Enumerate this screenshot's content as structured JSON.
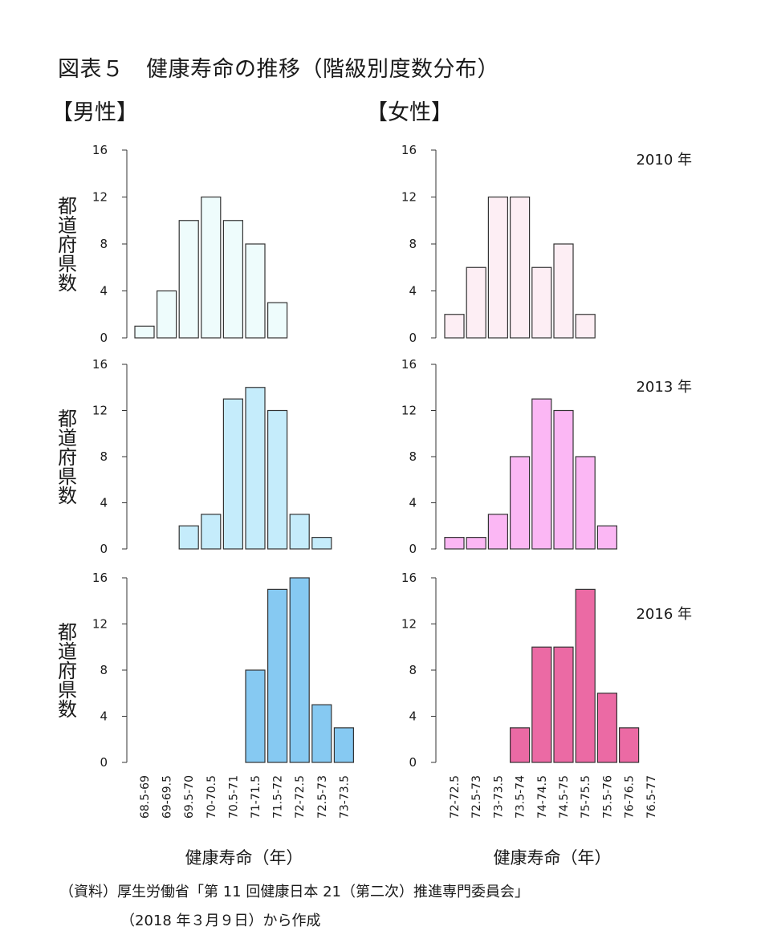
{
  "title": "図表５　健康寿命の推移（階級別度数分布）",
  "panel_headers": {
    "male": "【男性】",
    "female": "【女性】"
  },
  "y_axis_label": "都道府県数",
  "x_axis_label": "健康寿命（年）",
  "source_line1": "（資料）厚生労働省「第 11 回健康日本 21（第二次）推進専門委員会」",
  "source_line2": "（2018 年３月９日）から作成",
  "chart_data": [
    {
      "type": "bar",
      "sex": "male",
      "year_label": "",
      "categories": [
        "68.5-69",
        "69-69.5",
        "69.5-70",
        "70-70.5",
        "70.5-71",
        "71-71.5",
        "71.5-72",
        "72-72.5",
        "72.5-73",
        "73-73.5"
      ],
      "values": [
        1,
        4,
        10,
        12,
        10,
        8,
        3,
        0,
        0,
        0
      ],
      "yticks": [
        0,
        4,
        8,
        12,
        16
      ],
      "ylim": [
        0,
        16
      ],
      "color": "#eefcfc"
    },
    {
      "type": "bar",
      "sex": "female",
      "year_label": "2010 年",
      "categories": [
        "72-72.5",
        "72.5-73",
        "73-73.5",
        "73.5-74",
        "74-74.5",
        "74.5-75",
        "75-75.5",
        "75.5-76",
        "76-76.5",
        "76.5-77"
      ],
      "values": [
        2,
        6,
        12,
        12,
        6,
        8,
        2,
        0,
        0,
        0
      ],
      "yticks": [
        0,
        4,
        8,
        12,
        16
      ],
      "ylim": [
        0,
        16
      ],
      "color": "#fdeef4"
    },
    {
      "type": "bar",
      "sex": "male",
      "year_label": "",
      "categories": [
        "68.5-69",
        "69-69.5",
        "69.5-70",
        "70-70.5",
        "70.5-71",
        "71-71.5",
        "71.5-72",
        "72-72.5",
        "72.5-73",
        "73-73.5"
      ],
      "values": [
        0,
        0,
        2,
        3,
        13,
        14,
        12,
        3,
        1,
        0
      ],
      "yticks": [
        0,
        4,
        8,
        12,
        16
      ],
      "ylim": [
        0,
        16
      ],
      "color": "#c5ecfb"
    },
    {
      "type": "bar",
      "sex": "female",
      "year_label": "2013 年",
      "categories": [
        "72-72.5",
        "72.5-73",
        "73-73.5",
        "73.5-74",
        "74-74.5",
        "74.5-75",
        "75-75.5",
        "75.5-76",
        "76-76.5",
        "76.5-77"
      ],
      "values": [
        1,
        1,
        3,
        8,
        13,
        12,
        8,
        2,
        0,
        0
      ],
      "yticks": [
        0,
        4,
        8,
        12,
        16
      ],
      "ylim": [
        0,
        16
      ],
      "color": "#fbb7f4"
    },
    {
      "type": "bar",
      "sex": "male",
      "year_label": "",
      "categories": [
        "68.5-69",
        "69-69.5",
        "69.5-70",
        "70-70.5",
        "70.5-71",
        "71-71.5",
        "71.5-72",
        "72-72.5",
        "72.5-73",
        "73-73.5"
      ],
      "values": [
        0,
        0,
        0,
        0,
        0,
        8,
        15,
        16,
        5,
        3
      ],
      "yticks": [
        0,
        4,
        8,
        12,
        16
      ],
      "ylim": [
        0,
        16
      ],
      "color": "#86c9f2"
    },
    {
      "type": "bar",
      "sex": "female",
      "year_label": "2016 年",
      "categories": [
        "72-72.5",
        "72.5-73",
        "73-73.5",
        "73.5-74",
        "74-74.5",
        "74.5-75",
        "75-75.5",
        "75.5-76",
        "76-76.5",
        "76.5-77"
      ],
      "values": [
        0,
        0,
        0,
        3,
        10,
        10,
        15,
        6,
        3,
        0
      ],
      "yticks": [
        0,
        4,
        8,
        12,
        16
      ],
      "ylim": [
        0,
        16
      ],
      "color": "#eb6aa4"
    }
  ]
}
